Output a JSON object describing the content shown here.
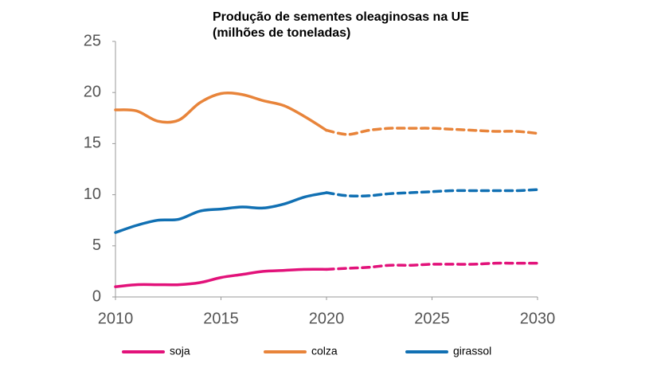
{
  "chart_data": {
    "type": "line",
    "title": "Produção de sementes oleaginosas na UE (milhões de toneladas)",
    "x": [
      2010,
      2011,
      2012,
      2013,
      2014,
      2015,
      2016,
      2017,
      2018,
      2019,
      2020,
      2021,
      2022,
      2023,
      2024,
      2025,
      2026,
      2027,
      2028,
      2029,
      2030
    ],
    "series": [
      {
        "name": "soja",
        "color": "#e2127a",
        "values": [
          1.0,
          1.2,
          1.2,
          1.2,
          1.4,
          1.9,
          2.2,
          2.5,
          2.6,
          2.7,
          2.7,
          2.8,
          2.9,
          3.1,
          3.1,
          3.2,
          3.2,
          3.2,
          3.3,
          3.3,
          3.3
        ]
      },
      {
        "name": "colza",
        "color": "#e8843a",
        "values": [
          18.3,
          18.2,
          17.2,
          17.3,
          19.0,
          19.9,
          19.8,
          19.2,
          18.7,
          17.6,
          16.3,
          15.9,
          16.3,
          16.5,
          16.5,
          16.5,
          16.4,
          16.3,
          16.2,
          16.2,
          16.0
        ]
      },
      {
        "name": "girassol",
        "color": "#1170b3",
        "values": [
          6.3,
          7.0,
          7.5,
          7.6,
          8.4,
          8.6,
          8.8,
          8.7,
          9.1,
          9.8,
          10.2,
          9.9,
          9.9,
          10.1,
          10.2,
          10.3,
          10.4,
          10.4,
          10.4,
          10.4,
          10.5
        ]
      }
    ],
    "projection_from": 2020,
    "xlim": [
      2010,
      2030
    ],
    "xticks": [
      2010,
      2015,
      2020,
      2025,
      2030
    ],
    "ylim": [
      0,
      25
    ],
    "yticks": [
      0,
      5,
      10,
      15,
      20,
      25
    ],
    "grid": false,
    "legend": "bottom"
  }
}
